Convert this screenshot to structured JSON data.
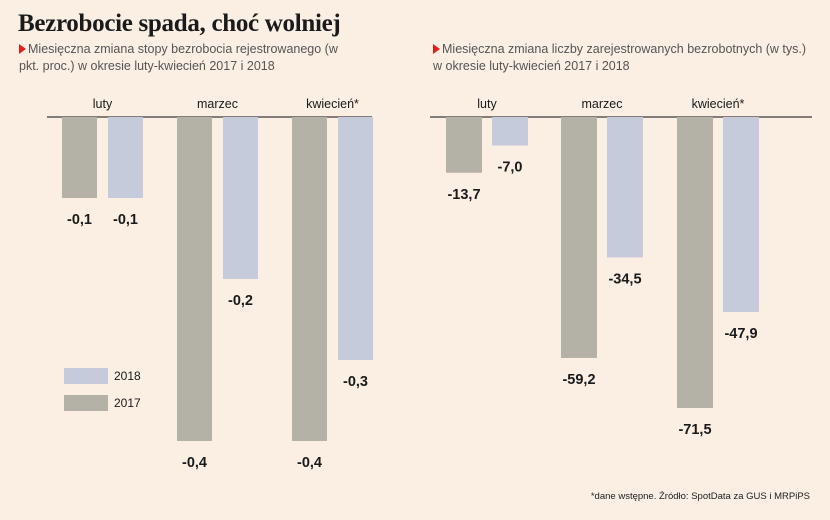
{
  "title": "Bezrobocie spada, choć wolniej",
  "subtitle_left": "Miesięczna zmiana stopy bezrobocia rejestrowanego (w pkt. proc.) w okresie luty-kwiecień 2017 i 2018",
  "subtitle_right": "Miesięczna zmiana liczby zarejestrowanych bezrobotnych (w tys.) w okresie luty-kwiecień 2017 i 2018",
  "legend": {
    "label_2018": "2018",
    "label_2017": "2017"
  },
  "source": "*dane wstępne. Źródło: SpotData za GUS i MRPiPS",
  "colors": {
    "s2017": "#b4b2a7",
    "s2018": "#c6cbdb",
    "background": "#fbeee2",
    "accent": "#e0211b"
  },
  "chart_data": [
    {
      "type": "bar",
      "categories": [
        "luty",
        "marzec",
        "kwiecień*"
      ],
      "series": [
        {
          "name": "2017",
          "values": [
            -0.1,
            -0.4,
            -0.4
          ],
          "labels": [
            "-0,1",
            "-0,4",
            "-0,4"
          ]
        },
        {
          "name": "2018",
          "values": [
            -0.1,
            -0.2,
            -0.3
          ],
          "labels": [
            "-0,1",
            "-0,2",
            "-0,3"
          ]
        }
      ],
      "ylim": [
        -0.4,
        0
      ],
      "legend_position": "bottom-left",
      "grid": false
    },
    {
      "type": "bar",
      "categories": [
        "luty",
        "marzec",
        "kwiecień*"
      ],
      "series": [
        {
          "name": "2017",
          "values": [
            -13.7,
            -59.2,
            -71.5
          ],
          "labels": [
            "-13,7",
            "-59,2",
            "-71,5"
          ]
        },
        {
          "name": "2018",
          "values": [
            -7.0,
            -34.5,
            -47.9
          ],
          "labels": [
            "-7,0",
            "-34,5",
            "-47,9"
          ]
        }
      ],
      "ylim": [
        -71.5,
        0
      ],
      "grid": false
    }
  ]
}
